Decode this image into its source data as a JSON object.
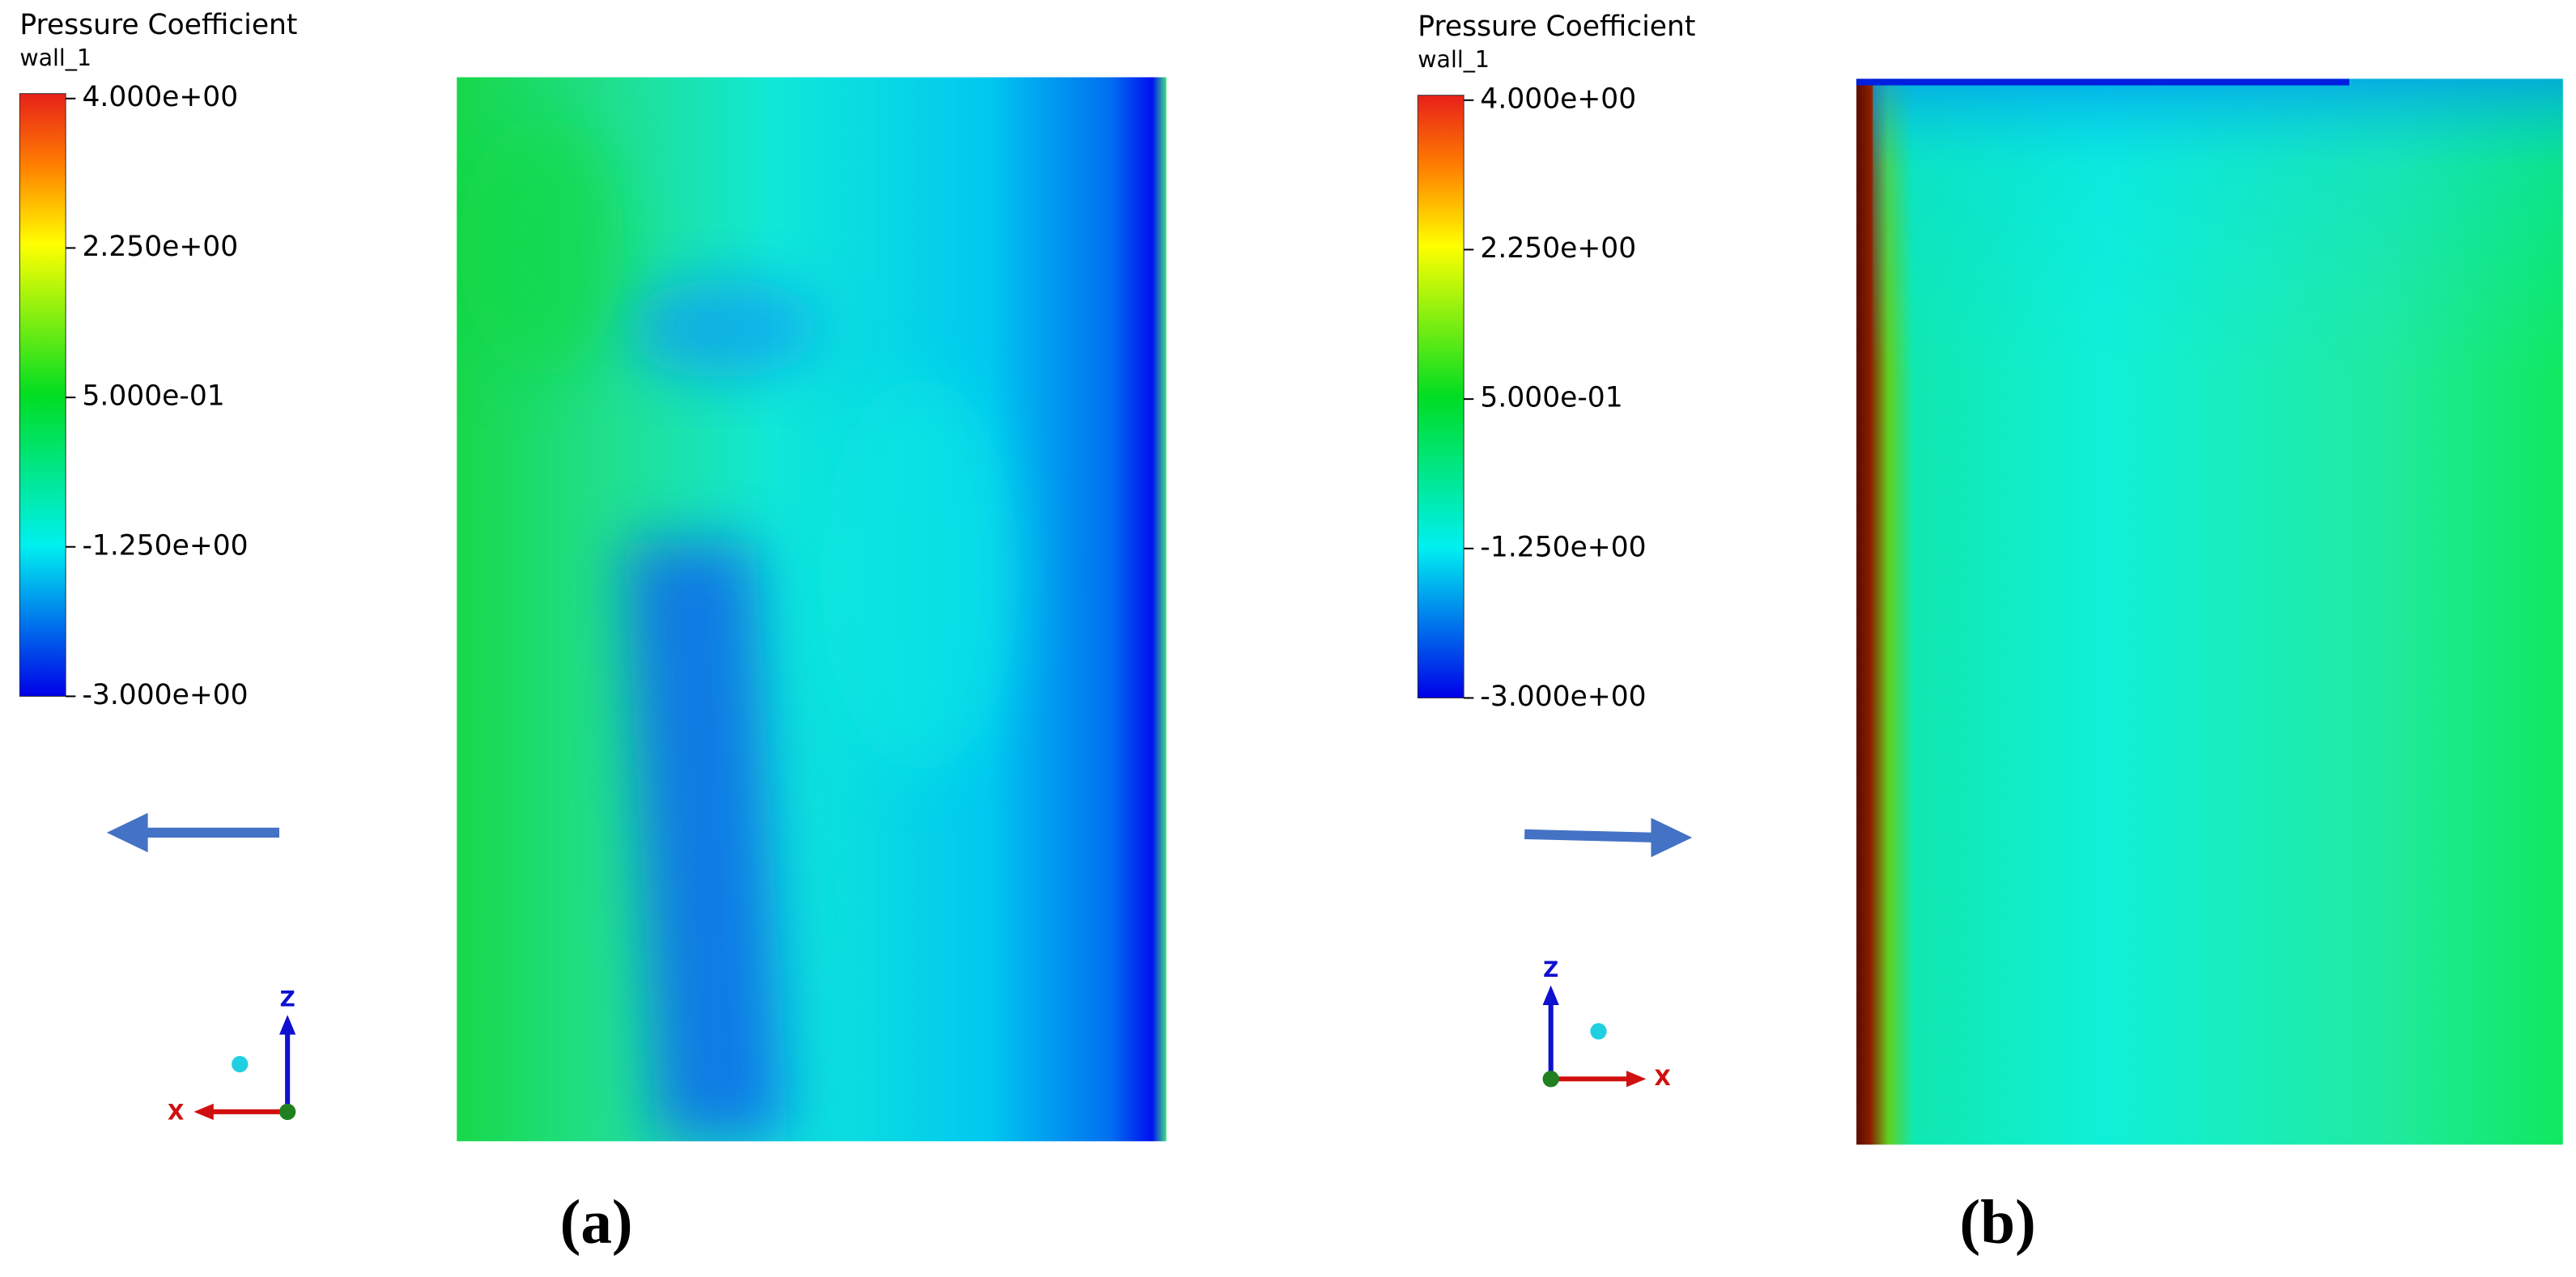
{
  "panels": [
    {
      "legend": {
        "title": "Pressure Coefficient",
        "subtitle": "wall_1",
        "labels": [
          "4.000e+00",
          "2.250e+00",
          "5.000e-01",
          "-1.250e+00",
          "-3.000e+00"
        ]
      },
      "axes": {
        "z": "Z",
        "x": "X"
      },
      "caption": "(a)"
    },
    {
      "legend": {
        "title": "Pressure Coefficient",
        "subtitle": "wall_1",
        "labels": [
          "4.000e+00",
          "2.250e+00",
          "5.000e-01",
          "-1.250e+00",
          "-3.000e+00"
        ]
      },
      "axes": {
        "z": "Z",
        "x": "X"
      },
      "caption": "(b)"
    }
  ]
}
